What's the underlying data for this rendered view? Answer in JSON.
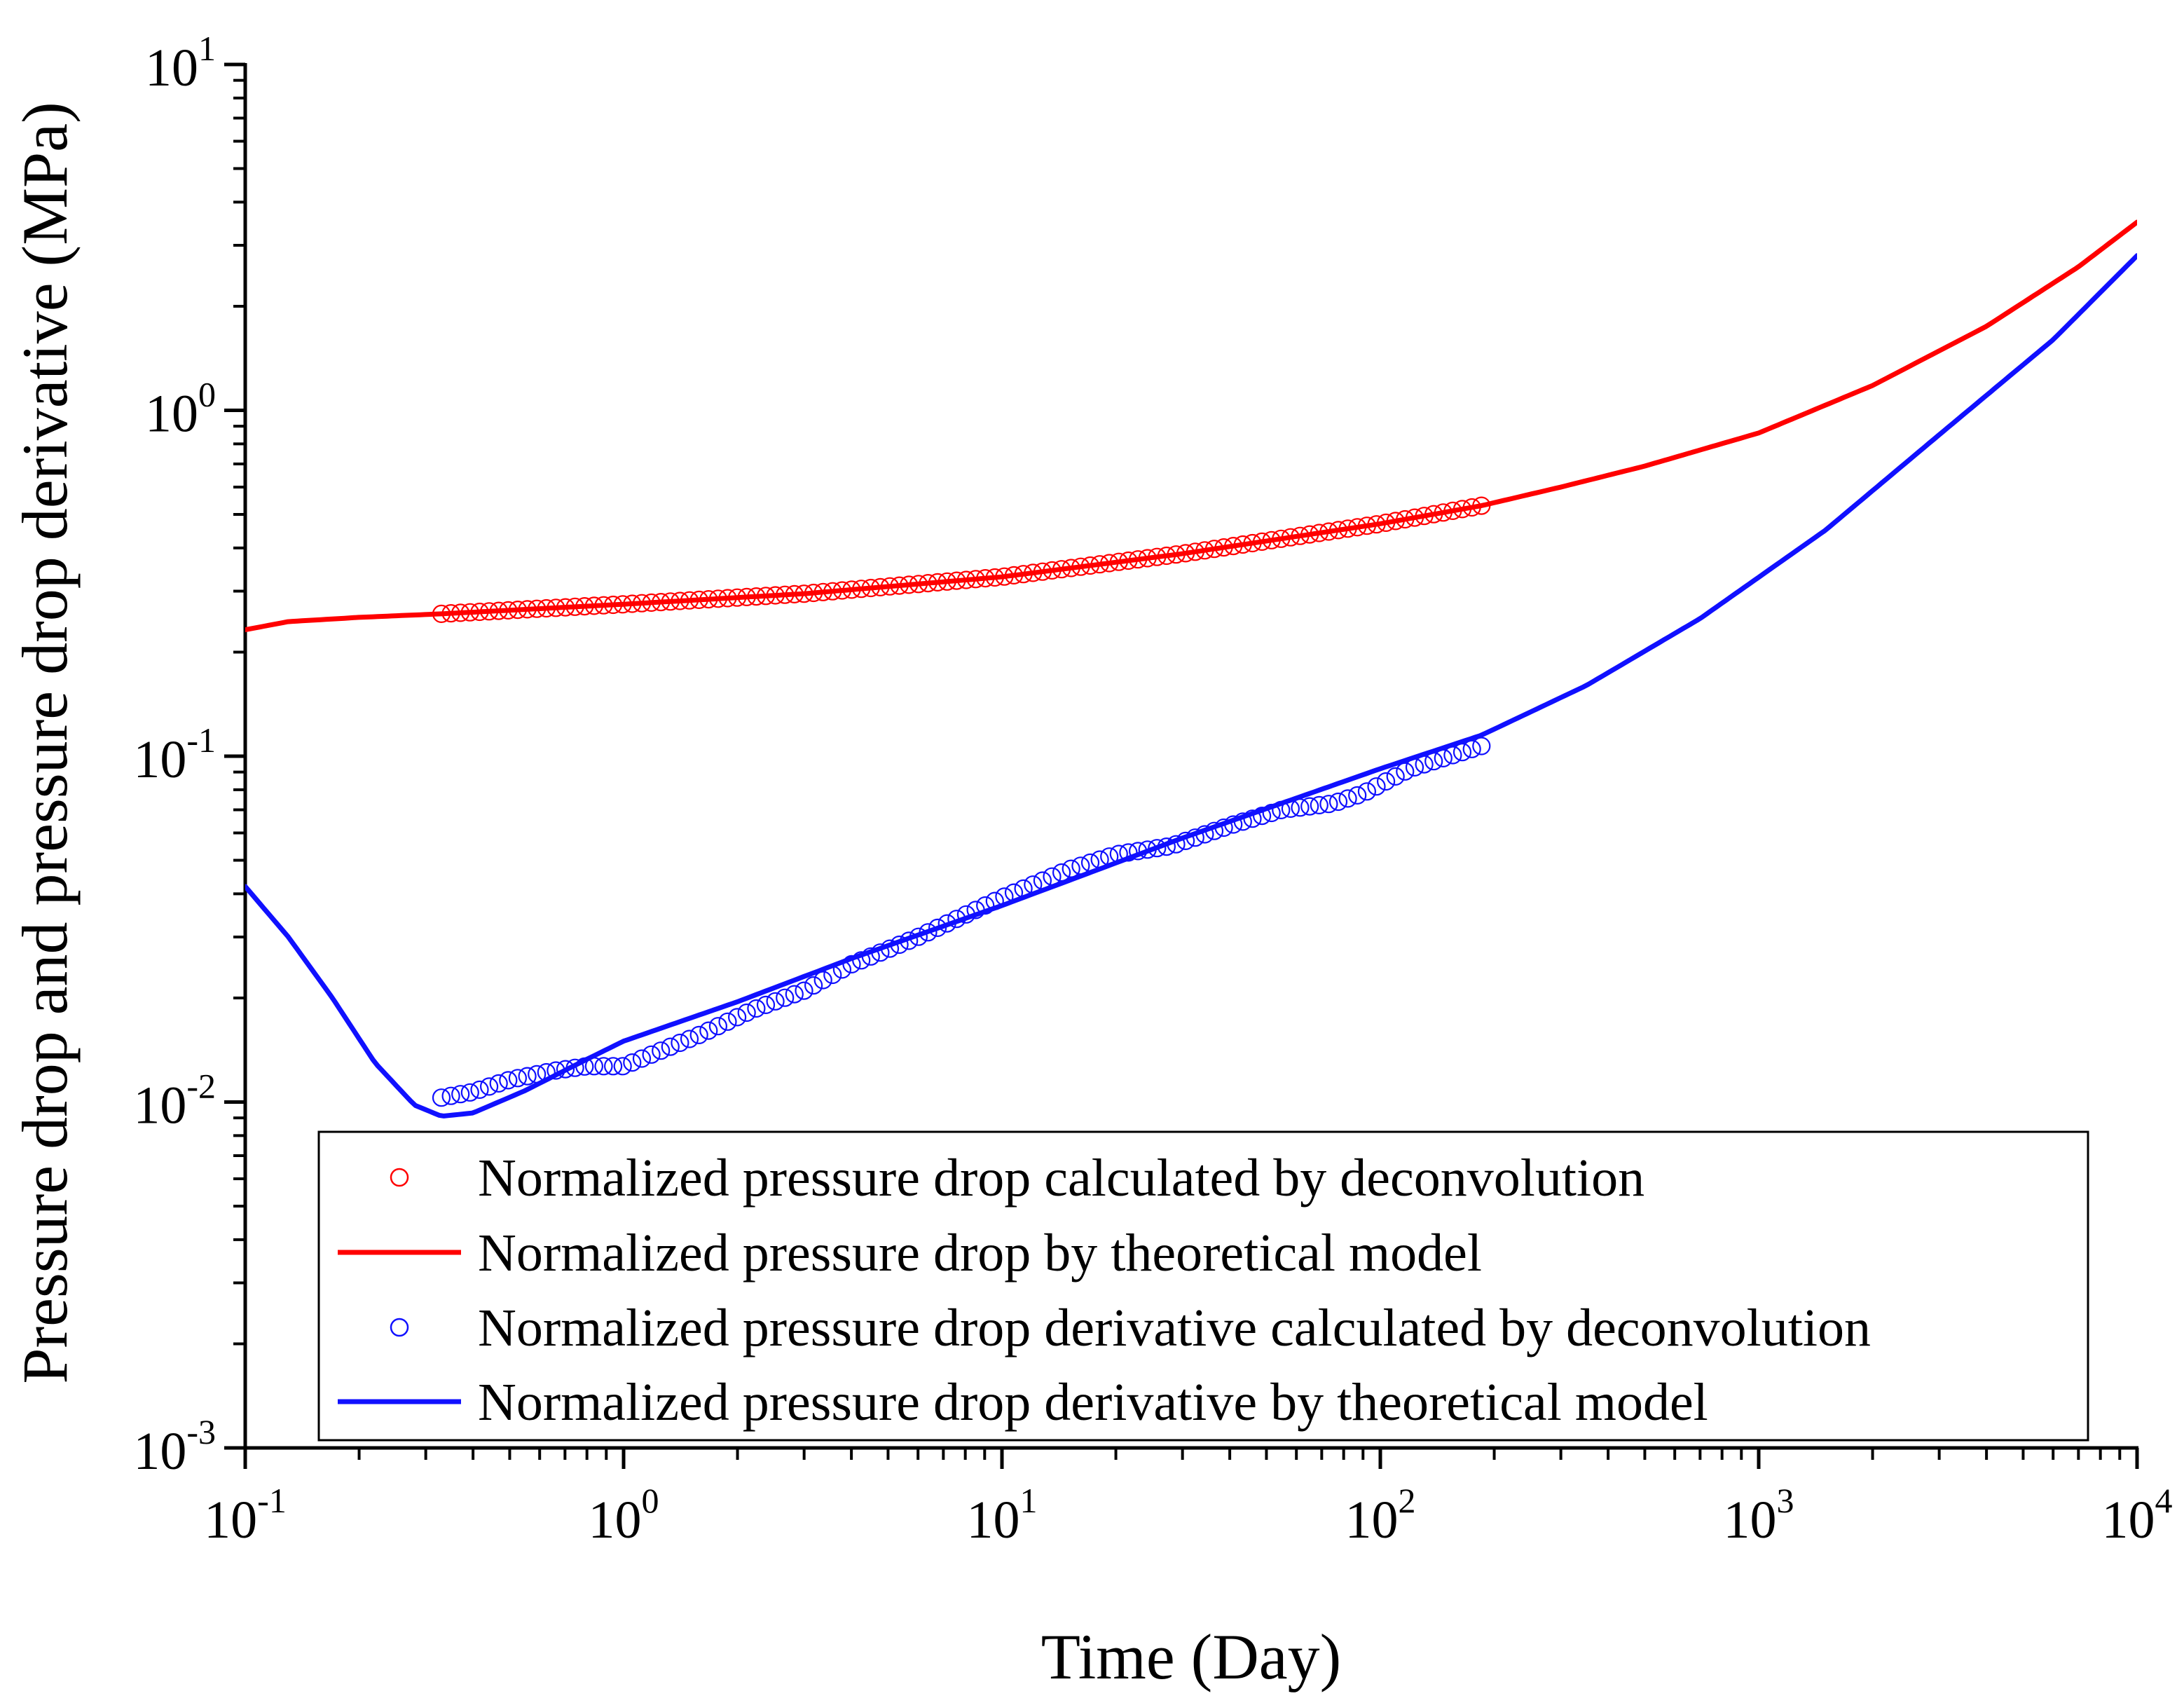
{
  "chart_data": {
    "type": "line",
    "x_scale": "log",
    "y_scale": "log",
    "xlabel": "Time (Day)",
    "ylabel": "Pressure drop and pressure drop derivative (MPa)",
    "xlim": [
      0.1,
      10000
    ],
    "ylim": [
      0.001,
      10
    ],
    "x_ticks": [
      {
        "base": "10",
        "exp": "-1",
        "value": 0.1
      },
      {
        "base": "10",
        "exp": "0",
        "value": 1
      },
      {
        "base": "10",
        "exp": "1",
        "value": 10
      },
      {
        "base": "10",
        "exp": "2",
        "value": 100
      },
      {
        "base": "10",
        "exp": "3",
        "value": 1000
      },
      {
        "base": "10",
        "exp": "4",
        "value": 10000
      }
    ],
    "y_ticks": [
      {
        "base": "10",
        "exp": "-3",
        "value": 0.001
      },
      {
        "base": "10",
        "exp": "-2",
        "value": 0.01
      },
      {
        "base": "10",
        "exp": "-1",
        "value": 0.1
      },
      {
        "base": "10",
        "exp": "0",
        "value": 1
      },
      {
        "base": "10",
        "exp": "1",
        "value": 10
      }
    ],
    "legend": {
      "position": "bottom",
      "entries": [
        {
          "label": "Normalized pressure drop calculated by deconvolution",
          "marker": "circle",
          "color": "#ff0000"
        },
        {
          "label": "Normalized pressure drop by theoretical model",
          "marker": "line",
          "color": "#ff0000"
        },
        {
          "label": "Normalized pressure drop derivative calculated by deconvolution",
          "marker": "circle",
          "color": "#1010ff"
        },
        {
          "label": "Normalized pressure drop  derivative  by theoretical  model",
          "marker": "line",
          "color": "#1010ff"
        }
      ]
    },
    "series": [
      {
        "name": "Normalized pressure drop calculated by deconvolution",
        "style": "markers",
        "color": "#ff0000",
        "x_range": [
          0.33,
          185
        ],
        "count": 110,
        "anchors": [
          [
            0.33,
            0.258
          ],
          [
            1,
            0.275
          ],
          [
            3,
            0.295
          ],
          [
            10,
            0.33
          ],
          [
            30,
            0.385
          ],
          [
            100,
            0.47
          ],
          [
            185,
            0.53
          ]
        ]
      },
      {
        "name": "Normalized pressure drop by theoretical model",
        "style": "line",
        "color": "#ff0000",
        "points": [
          [
            0.1,
            0.232
          ],
          [
            0.13,
            0.245
          ],
          [
            0.2,
            0.252
          ],
          [
            0.33,
            0.258
          ],
          [
            1,
            0.275
          ],
          [
            3,
            0.295
          ],
          [
            10,
            0.33
          ],
          [
            30,
            0.385
          ],
          [
            100,
            0.47
          ],
          [
            185,
            0.53
          ],
          [
            300,
            0.6
          ],
          [
            500,
            0.69
          ],
          [
            1000,
            0.86
          ],
          [
            2000,
            1.18
          ],
          [
            4000,
            1.75
          ],
          [
            7000,
            2.6
          ],
          [
            10000,
            3.5
          ]
        ]
      },
      {
        "name": "Normalized pressure drop derivative calculated by deconvolution",
        "style": "markers",
        "color": "#1010ff",
        "x_range": [
          0.33,
          185
        ],
        "count": 110,
        "anchors": [
          [
            0.33,
            0.0103
          ],
          [
            0.4,
            0.0107
          ],
          [
            0.5,
            0.0116
          ],
          [
            0.65,
            0.0123
          ],
          [
            0.8,
            0.0127
          ],
          [
            1,
            0.0127
          ],
          [
            1.2,
            0.0138
          ],
          [
            1.6,
            0.0157
          ],
          [
            2.2,
            0.0185
          ],
          [
            3,
            0.021
          ],
          [
            4,
            0.025
          ],
          [
            6,
            0.03
          ],
          [
            10,
            0.039
          ],
          [
            15,
            0.047
          ],
          [
            20,
            0.052
          ],
          [
            28,
            0.055
          ],
          [
            40,
            0.063
          ],
          [
            55,
            0.07
          ],
          [
            75,
            0.073
          ],
          [
            90,
            0.078
          ],
          [
            120,
            0.092
          ],
          [
            185,
            0.107
          ]
        ]
      },
      {
        "name": "Normalized pressure drop  derivative  by theoretical  model",
        "style": "line",
        "color": "#1010ff",
        "points": [
          [
            0.1,
            0.042
          ],
          [
            0.13,
            0.03
          ],
          [
            0.17,
            0.02
          ],
          [
            0.22,
            0.013
          ],
          [
            0.28,
            0.0098
          ],
          [
            0.33,
            0.0091
          ],
          [
            0.4,
            0.0093
          ],
          [
            0.55,
            0.0108
          ],
          [
            0.8,
            0.0133
          ],
          [
            1,
            0.015
          ],
          [
            2,
            0.0195
          ],
          [
            4,
            0.026
          ],
          [
            10,
            0.037
          ],
          [
            30,
            0.058
          ],
          [
            100,
            0.092
          ],
          [
            185,
            0.115
          ],
          [
            350,
            0.16
          ],
          [
            700,
            0.25
          ],
          [
            1500,
            0.45
          ],
          [
            3000,
            0.85
          ],
          [
            6000,
            1.6
          ],
          [
            10000,
            2.8
          ]
        ]
      }
    ]
  }
}
